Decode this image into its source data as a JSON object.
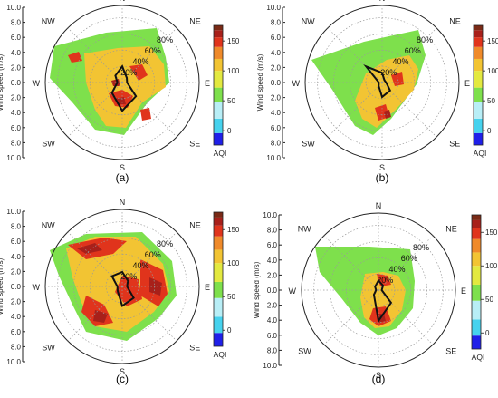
{
  "chart_data": [
    {
      "type": "polar-contour",
      "panel_label": "(a)",
      "ylabel": "Wind speed (m/s)",
      "radial_axis": {
        "ticks": [
          "10.0",
          "8.0",
          "6.0",
          "4.0",
          "2.0",
          "0.0",
          "2.0",
          "4.0",
          "6.0",
          "8.0",
          "10.0"
        ],
        "range": [
          0,
          10.0
        ]
      },
      "directions": [
        "N",
        "NE",
        "E",
        "SE",
        "S",
        "SW",
        "W",
        "NW"
      ],
      "frequency_rings": [
        "20%",
        "40%",
        "60%",
        "80%"
      ],
      "frequency_rose": {
        "directions": [
          "N",
          "NE",
          "E",
          "SE",
          "S",
          "SW",
          "W",
          "NW"
        ],
        "percent": [
          20,
          8,
          6,
          24,
          35,
          18,
          6,
          12
        ]
      },
      "colorbar": {
        "title": "AQI",
        "ticks": [
          "0",
          "50",
          "100",
          "150"
        ],
        "range": [
          0,
          200
        ]
      }
    },
    {
      "type": "polar-contour",
      "panel_label": "(b)",
      "ylabel": "Wind speed (m/s)",
      "radial_axis": {
        "ticks": [
          "10.0",
          "8.0",
          "6.0",
          "4.0",
          "2.0",
          "0.0",
          "2.0",
          "4.0",
          "6.0",
          "8.0",
          "10.0"
        ],
        "range": [
          0,
          10.0
        ]
      },
      "directions": [
        "N",
        "NE",
        "E",
        "SE",
        "S",
        "SW",
        "W",
        "NW"
      ],
      "frequency_rings": [
        "20%",
        "40%",
        "60%",
        "80%"
      ],
      "frequency_rose": {
        "directions": [
          "N",
          "NE",
          "E",
          "SE",
          "S",
          "SW",
          "W",
          "NW"
        ],
        "percent": [
          12,
          4,
          5,
          14,
          18,
          6,
          4,
          28
        ]
      },
      "colorbar": {
        "title": "AQI",
        "ticks": [
          "0",
          "50",
          "100",
          "150"
        ],
        "range": [
          0,
          200
        ]
      }
    },
    {
      "type": "polar-contour",
      "panel_label": "(c)",
      "ylabel": "Wind speed (m/s)",
      "radial_axis": {
        "ticks": [
          "10.0",
          "8.0",
          "6.0",
          "4.0",
          "2.0",
          "0.0",
          "2.0",
          "4.0",
          "6.0",
          "8.0",
          "10.0"
        ],
        "range": [
          0,
          10.0
        ]
      },
      "directions": [
        "N",
        "NE",
        "E",
        "SE",
        "S",
        "SW",
        "W",
        "NW"
      ],
      "frequency_rings": [
        "20%",
        "40%",
        "60%",
        "80%"
      ],
      "frequency_rose": {
        "directions": [
          "N",
          "NE",
          "E",
          "SE",
          "S",
          "SW",
          "W",
          "NW"
        ],
        "percent": [
          18,
          10,
          6,
          20,
          24,
          8,
          6,
          18
        ]
      },
      "colorbar": {
        "title": "AQI",
        "ticks": [
          "0",
          "50",
          "100",
          "150"
        ],
        "range": [
          0,
          200
        ]
      }
    },
    {
      "type": "polar-contour",
      "panel_label": "(d)",
      "ylabel": "Wind speed (m/s)",
      "radial_axis": {
        "ticks": [
          "10.0",
          "8.0",
          "6.0",
          "4.0",
          "2.0",
          "0.0",
          "2.0",
          "4.0",
          "6.0",
          "8.0",
          "10.0"
        ],
        "range": [
          0,
          10.0
        ]
      },
      "directions": [
        "N",
        "NE",
        "E",
        "SE",
        "S",
        "SW",
        "W",
        "NW"
      ],
      "frequency_rings": [
        "20%",
        "40%",
        "60%",
        "80%"
      ],
      "frequency_rose": {
        "directions": [
          "N",
          "NE",
          "E",
          "SE",
          "S",
          "SW",
          "W",
          "NW"
        ],
        "percent": [
          12,
          8,
          4,
          22,
          38,
          8,
          3,
          6
        ]
      },
      "colorbar": {
        "title": "AQI",
        "ticks": [
          "0",
          "50",
          "100",
          "150"
        ],
        "range": [
          0,
          200
        ]
      }
    }
  ],
  "colors": {
    "aqi_scale": [
      "#1f1fe8",
      "#46d2ee",
      "#b8eef6",
      "#7ee04c",
      "#e3e940",
      "#f2c433",
      "#ef8a2a",
      "#e0341c",
      "#a8201a",
      "#7a2a16"
    ],
    "rose_line": "#111111",
    "grid": "#9a9a9a",
    "axis_text": "#222222"
  }
}
